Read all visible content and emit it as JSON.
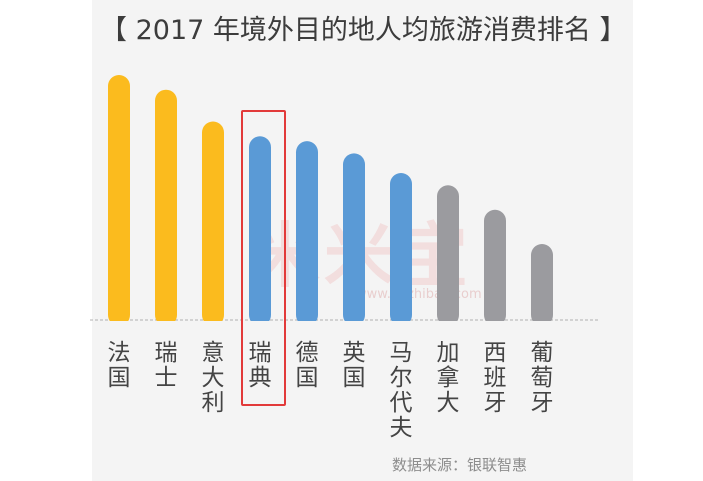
{
  "title": "【 2017 年境外目的地人均旅游消费排名 】",
  "source": "数据来源：银联智惠",
  "watermark": {
    "text": "米米宝",
    "url": "www.mizhibao.com"
  },
  "colors": {
    "top": "#fbbb1e",
    "highlighted": "#5a9ad6",
    "rest": "#9b9b9f",
    "highlight_box": "#e23a3a"
  },
  "chart_data": {
    "type": "bar",
    "title": "2017 年境外目的地人均旅游消费排名",
    "categories": [
      "法国",
      "瑞士",
      "意大利",
      "瑞典",
      "德国",
      "英国",
      "马尔代夫",
      "加拿大",
      "西班牙",
      "葡萄牙"
    ],
    "values": [
      100,
      94,
      81,
      75,
      73,
      68,
      60,
      55,
      45,
      31
    ],
    "color_groups": [
      "top",
      "top",
      "top",
      "highlighted",
      "highlighted",
      "highlighted",
      "highlighted",
      "rest",
      "rest",
      "rest"
    ],
    "highlighted_category": "瑞典",
    "ylim": [
      0,
      100
    ],
    "grid": false,
    "legend": "none"
  }
}
